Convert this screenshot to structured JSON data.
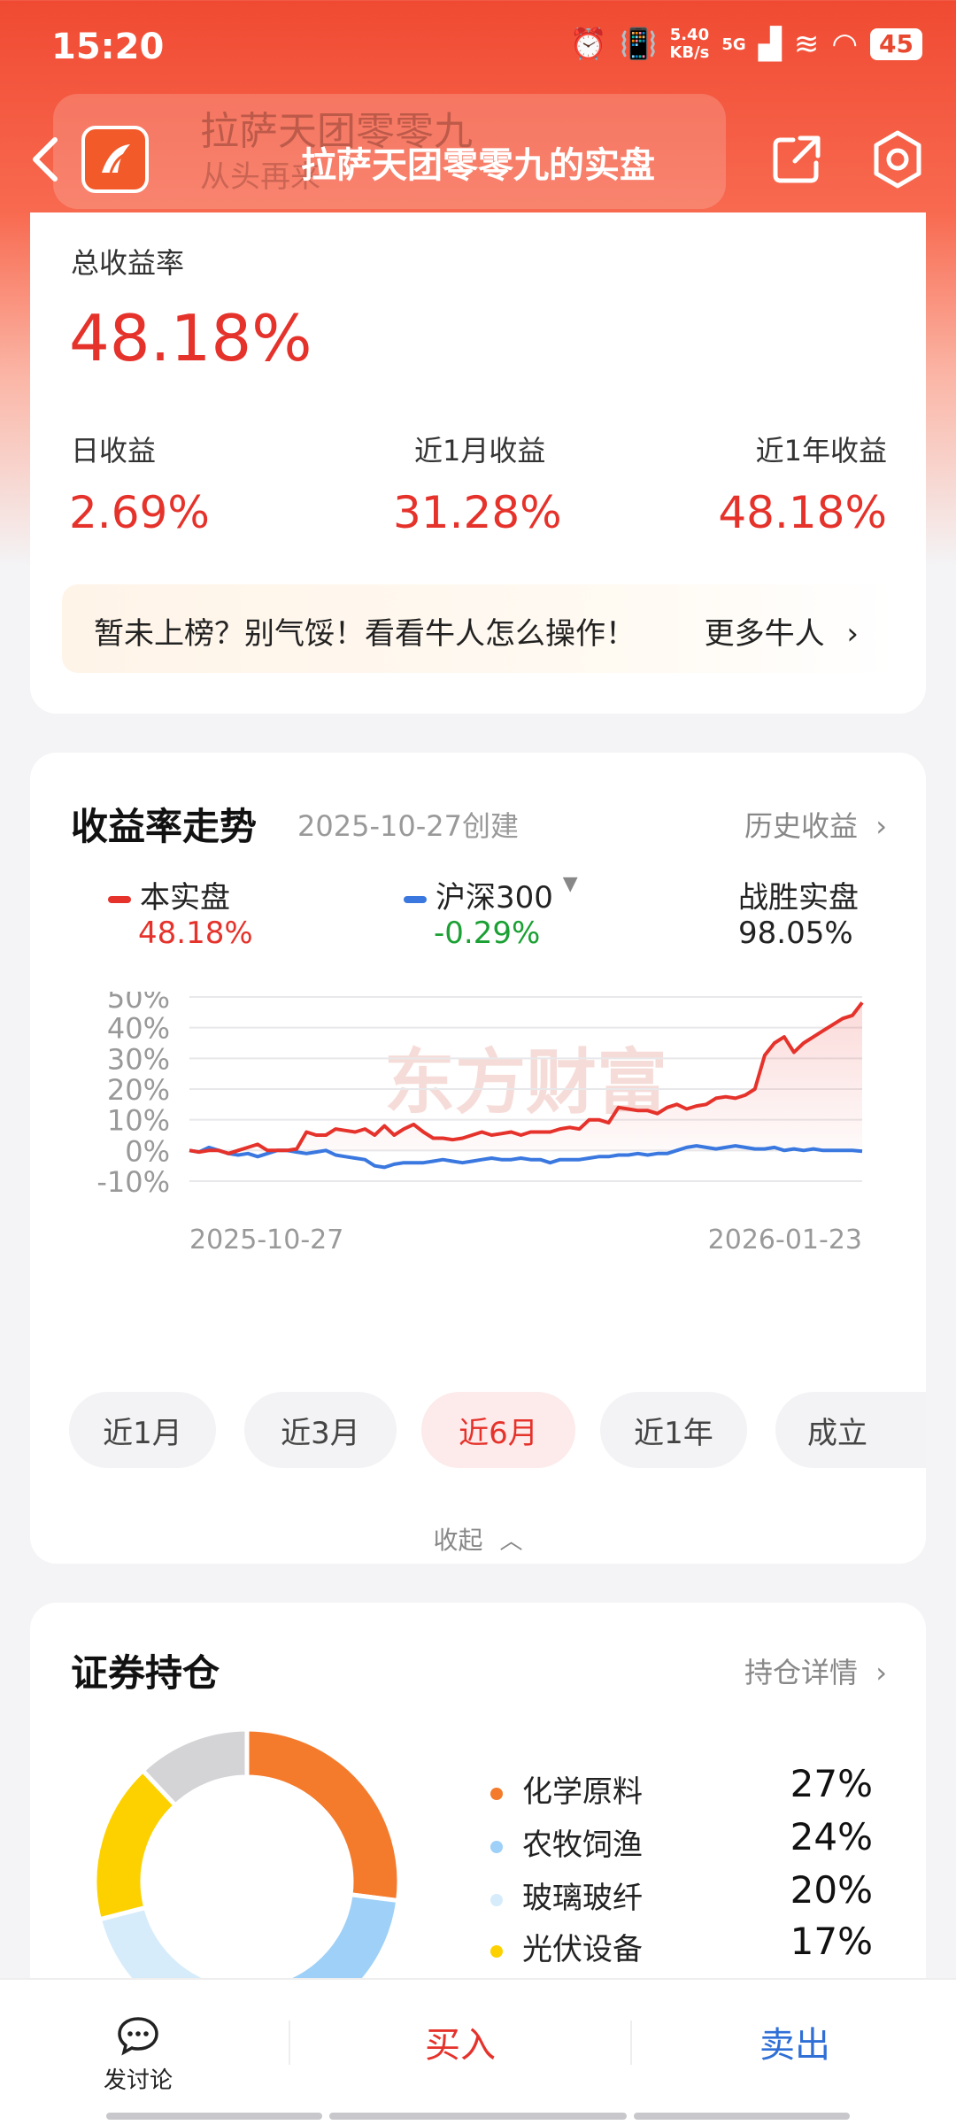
{
  "status": {
    "time": "15:20",
    "net_speed_top": "5.40",
    "net_speed_bottom": "KB/s",
    "network": "5G",
    "battery": "45"
  },
  "header": {
    "title": "拉萨天团零零九的实盘",
    "ghost_name": "拉萨天团零零九",
    "ghost_sub": "从头再来"
  },
  "summary": {
    "total_label": "总收益率",
    "total_value": "48.18%",
    "day_label": "日收益",
    "day_value": "2.69%",
    "month_label": "近1月收益",
    "month_value": "31.28%",
    "year_label": "近1年收益",
    "year_value": "48.18%"
  },
  "promo": {
    "text": "暂未上榜？别气馁！看看牛人怎么操作！",
    "link": "更多牛人"
  },
  "trend": {
    "title": "收益率走势",
    "created": "2025-10-27创建",
    "history_link": "历史收益",
    "legend": [
      {
        "name": "本实盘",
        "value": "48.18%",
        "color": "#e5322b"
      },
      {
        "name": "沪深300",
        "value": "-0.29%",
        "color": "#3a78e0"
      }
    ],
    "beat_label": "战胜实盘",
    "beat_value": "98.05%",
    "periods": [
      "近1月",
      "近3月",
      "近6月",
      "近1年",
      "成立"
    ],
    "active_period": "近6月",
    "collapse": "收起",
    "watermark": "东方财富"
  },
  "chart_data": {
    "type": "line",
    "y_ticks": [
      "50%",
      "40%",
      "30%",
      "20%",
      "10%",
      "0%",
      "-10%"
    ],
    "ylim": [
      -10,
      50
    ],
    "x_start": "2025-10-27",
    "x_end": "2026-01-23",
    "series": [
      {
        "name": "本实盘",
        "color": "#e5322b",
        "values": [
          0,
          -0.5,
          0,
          0,
          -1,
          0,
          1,
          2,
          0,
          0,
          0,
          0.5,
          6,
          5,
          5,
          7,
          6.5,
          6,
          7,
          5,
          8,
          5,
          7,
          8.5,
          6,
          4,
          4,
          3.5,
          4,
          5,
          6,
          5,
          5.5,
          6,
          5,
          6,
          6,
          6,
          7,
          7.5,
          7,
          10,
          10,
          9,
          14,
          13.5,
          13,
          13,
          12,
          14,
          15,
          13.5,
          14.5,
          15,
          17,
          17.5,
          17,
          18,
          20,
          31,
          35,
          37,
          32,
          35,
          37,
          39,
          41,
          43,
          44,
          48.18
        ]
      },
      {
        "name": "沪深300",
        "color": "#3a78e0",
        "values": [
          0,
          -0.5,
          1,
          0,
          -1,
          -1.5,
          -1,
          -2,
          -1,
          0,
          0,
          -0.5,
          -1,
          -0.5,
          0,
          -1.5,
          -2,
          -2.5,
          -3,
          -5,
          -5.5,
          -4.5,
          -4,
          -4,
          -4,
          -3.5,
          -3,
          -3.5,
          -4,
          -3.5,
          -3,
          -2.5,
          -3,
          -3,
          -2.5,
          -3,
          -3,
          -4,
          -3,
          -3,
          -3,
          -2.5,
          -2,
          -2,
          -1.5,
          -1.5,
          -1,
          -1.5,
          -1,
          -1,
          0,
          1,
          1.5,
          1,
          0.5,
          1,
          1.5,
          1,
          0.5,
          0.5,
          1,
          0,
          0.5,
          0,
          0.5,
          0,
          0,
          0,
          0,
          -0.29
        ]
      }
    ]
  },
  "holdings": {
    "title": "证券持仓",
    "detail_link": "持仓详情",
    "items": [
      {
        "name": "化学原料",
        "pct": "27%",
        "color": "#f47a2c",
        "value": 27
      },
      {
        "name": "农牧饲渔",
        "pct": "24%",
        "color": "#9ed0f8",
        "value": 24
      },
      {
        "name": "玻璃玻纤",
        "pct": "20%",
        "color": "#d6ecfb",
        "value": 20
      },
      {
        "name": "光伏设备",
        "pct": "17%",
        "color": "#fdd100",
        "value": 17
      }
    ],
    "other": {
      "value": 12,
      "color": "#d4d4d6"
    }
  },
  "bottom": {
    "discuss": "发讨论",
    "buy": "买入",
    "sell": "卖出"
  }
}
